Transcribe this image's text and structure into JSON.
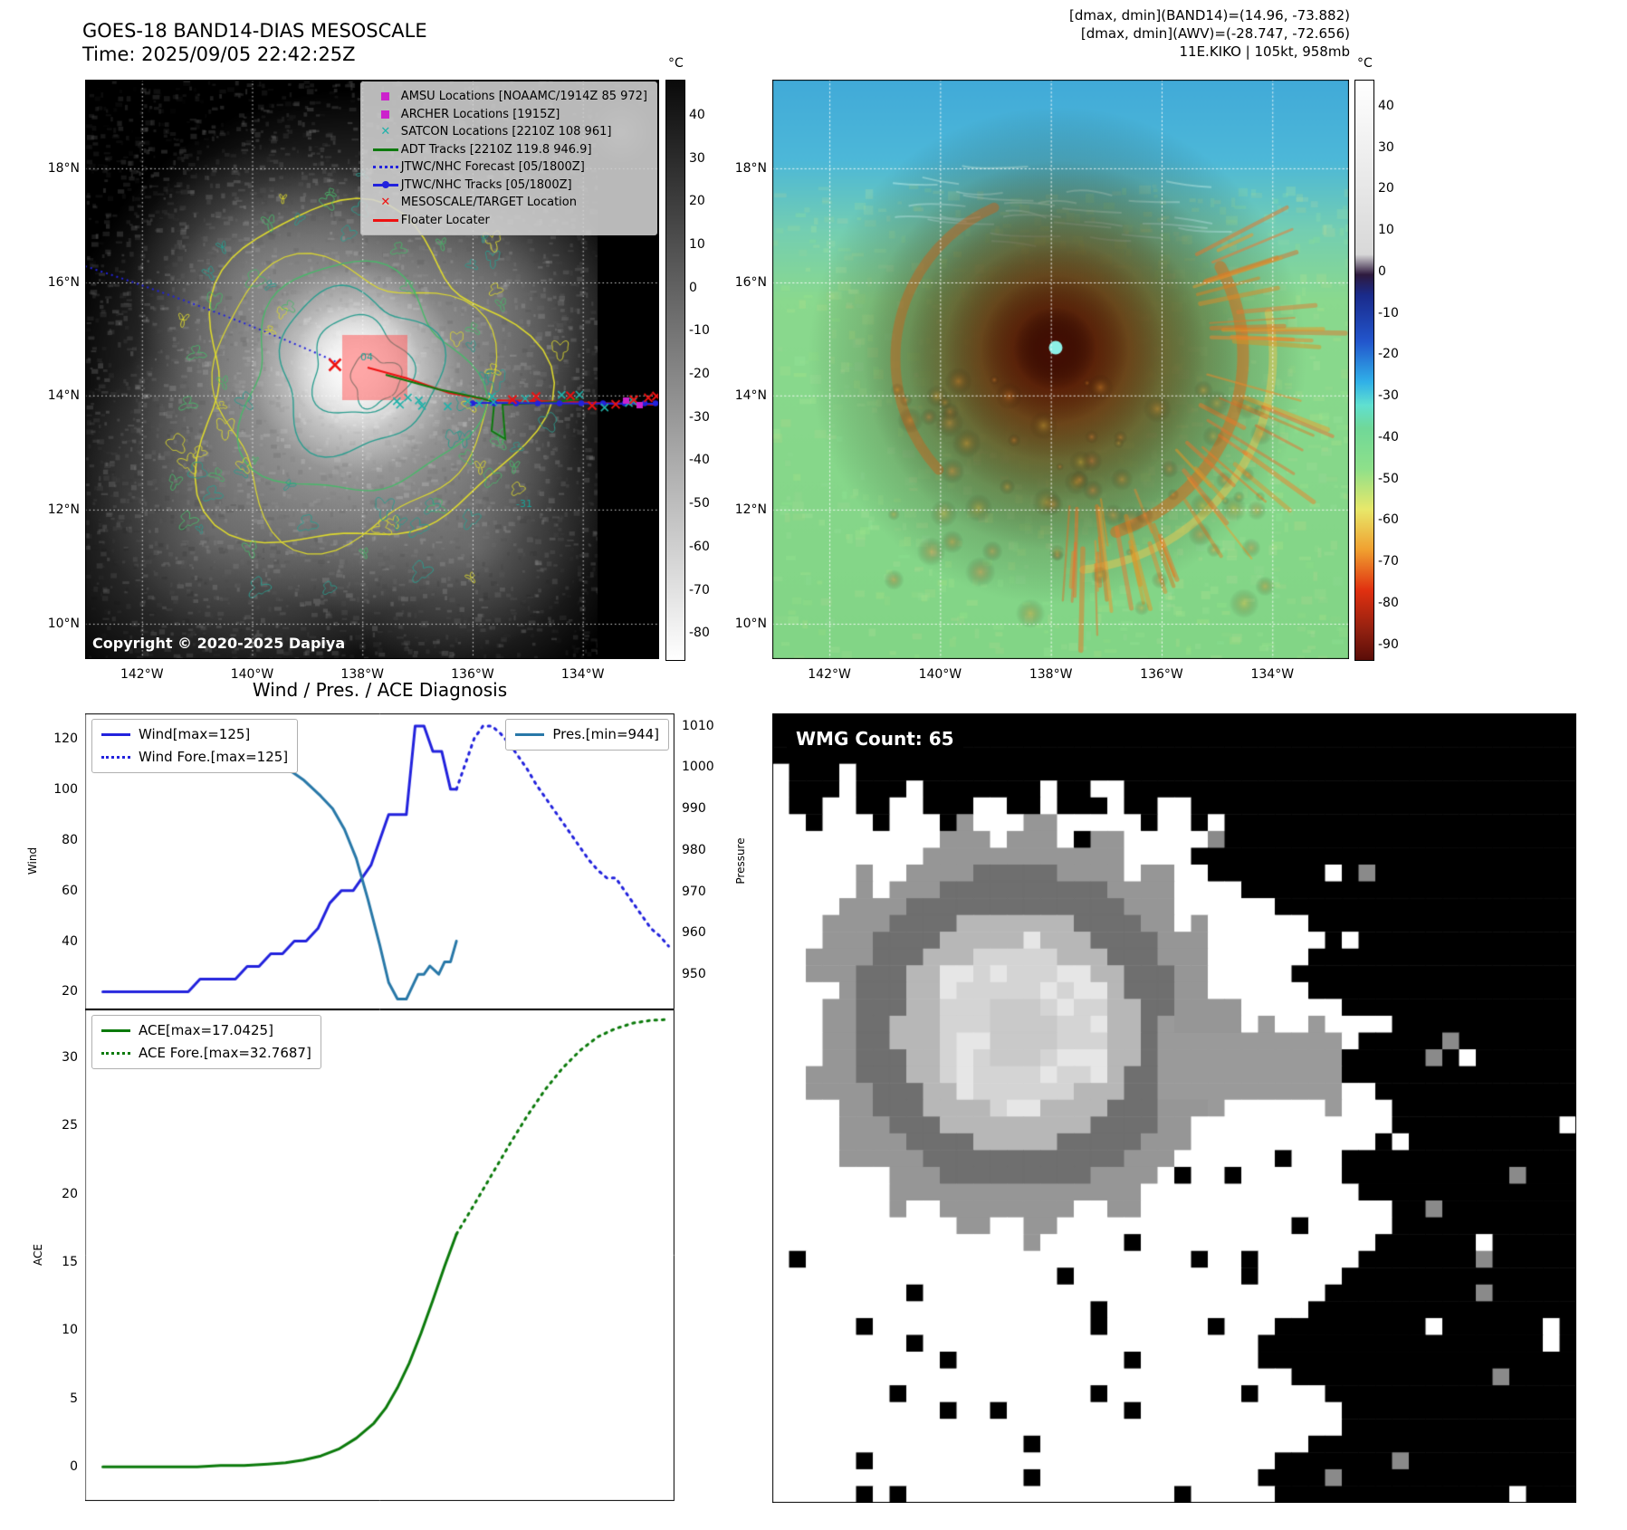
{
  "band14": {
    "title": "GOES-18 BAND14-DIAS MESOSCALE",
    "time_line": "Time: 2025/09/05 22:42:25Z",
    "copyright": "Copyright © 2020-2025 Dapiya",
    "colorbar_unit": "°C",
    "colorbar_ticks": [
      "40",
      "30",
      "20",
      "10",
      "0",
      "-10",
      "-20",
      "-30",
      "-40",
      "-50",
      "-60",
      "-70",
      "-80"
    ],
    "colorbar_stops": [
      [
        0,
        "#0a0a0a"
      ],
      [
        1,
        "#ffffff"
      ]
    ],
    "x_ticks": [
      "142°W",
      "140°W",
      "138°W",
      "136°W",
      "134°W"
    ],
    "y_ticks": [
      "18°N",
      "16°N",
      "14°N",
      "12°N",
      "10°N"
    ],
    "map_labels": [
      "04",
      "-31"
    ],
    "legend": [
      {
        "label": "AMSU Locations [NOAAMC/1914Z 85 972]",
        "marker": "square",
        "color": "#cc22cc"
      },
      {
        "label": "ARCHER Locations [1915Z]",
        "marker": "square",
        "color": "#cc22cc"
      },
      {
        "label": "SATCON Locations [2210Z 108 961]",
        "marker": "x",
        "color": "#20b2aa"
      },
      {
        "label": "ADT Tracks [2210Z 119.8 946.9]",
        "marker": "line",
        "color": "#0e7a0e"
      },
      {
        "label": "JTWC/NHC Forecast [05/1800Z]",
        "marker": "dotted",
        "color": "#2222dd"
      },
      {
        "label": "JTWC/NHC Tracks [05/1800Z]",
        "marker": "line-dot",
        "color": "#2222dd"
      },
      {
        "label": "MESOSCALE/TARGET Location",
        "marker": "x",
        "color": "#ee1111"
      },
      {
        "label": "Floater Locater",
        "marker": "line",
        "color": "#ee1111"
      }
    ]
  },
  "awv": {
    "header_lines": [
      "[dmax, dmin](BAND14)=(14.96, -73.882)",
      "[dmax, dmin](AWV)=(-28.747, -72.656)",
      "11E.KIKO | 105kt, 958mb"
    ],
    "colorbar_unit": "°C",
    "colorbar_ticks": [
      "40",
      "30",
      "20",
      "10",
      "0",
      "-10",
      "-20",
      "-30",
      "-40",
      "-50",
      "-60",
      "-70",
      "-80",
      "-90"
    ],
    "colorbar_stops": [
      [
        0,
        "#ffffff"
      ],
      [
        0.3,
        "#d8d8d8"
      ],
      [
        0.335,
        "#2e1a3e"
      ],
      [
        0.37,
        "#1a2a8a"
      ],
      [
        0.45,
        "#2255cc"
      ],
      [
        0.52,
        "#30b0e8"
      ],
      [
        0.56,
        "#60e0d0"
      ],
      [
        0.6,
        "#70d898"
      ],
      [
        0.67,
        "#8ee08a"
      ],
      [
        0.74,
        "#e8e86a"
      ],
      [
        0.81,
        "#f0a030"
      ],
      [
        0.88,
        "#e03010"
      ],
      [
        0.95,
        "#902010"
      ],
      [
        1,
        "#5a0d08"
      ]
    ],
    "x_ticks": [
      "142°W",
      "140°W",
      "138°W",
      "136°W",
      "134°W"
    ],
    "y_ticks": [
      "18°N",
      "16°N",
      "14°N",
      "12°N",
      "10°N"
    ]
  },
  "diagnosis": {
    "title": "Wind / Pres. / ACE Diagnosis"
  },
  "wmg": {
    "label": "WMG Count: 65"
  },
  "chart_data": [
    {
      "type": "line",
      "title": "Wind / Pres. / ACE Diagnosis (upper: wind & pressure)",
      "ylabel_left": "Wind",
      "ylabel_right": "Pressure",
      "ylim_left": [
        13,
        130
      ],
      "ylim_right": [
        941.5,
        1013
      ],
      "yticks_left": [
        20,
        40,
        60,
        80,
        100,
        120
      ],
      "yticks_right": [
        950,
        960,
        970,
        980,
        990,
        1000,
        1010
      ],
      "legend_position": "upper left / upper right",
      "series": [
        {
          "name": "Wind[max=125]",
          "axis": "left",
          "color": "#2222dd",
          "style": "solid",
          "x": [
            0.03,
            0.055,
            0.08,
            0.105,
            0.13,
            0.155,
            0.175,
            0.195,
            0.215,
            0.235,
            0.255,
            0.275,
            0.295,
            0.315,
            0.335,
            0.355,
            0.375,
            0.395,
            0.415,
            0.435,
            0.455,
            0.47,
            0.485,
            0.5,
            0.515,
            0.53,
            0.545,
            0.56,
            0.575,
            0.59,
            0.605,
            0.62,
            0.63
          ],
          "y": [
            20,
            20,
            20,
            20,
            20,
            20,
            20,
            25,
            25,
            25,
            25,
            30,
            30,
            35,
            35,
            40,
            40,
            45,
            55,
            60,
            60,
            65,
            70,
            80,
            90,
            90,
            90,
            125,
            125,
            115,
            115,
            100,
            100
          ]
        },
        {
          "name": "Wind Fore.[max=125]",
          "axis": "left",
          "color": "#2222dd",
          "style": "dotted",
          "x": [
            0.63,
            0.645,
            0.66,
            0.675,
            0.69,
            0.705,
            0.72,
            0.735,
            0.75,
            0.765,
            0.78,
            0.795,
            0.81,
            0.825,
            0.84,
            0.855,
            0.87,
            0.885,
            0.9,
            0.915,
            0.93,
            0.945,
            0.96,
            0.975,
            0.99
          ],
          "y": [
            100,
            110,
            120,
            125,
            125,
            122,
            118,
            113,
            108,
            102,
            97,
            92,
            87,
            82,
            77,
            72,
            68,
            65,
            65,
            60,
            55,
            50,
            45,
            42,
            38
          ]
        },
        {
          "name": "Pres.[min=944]",
          "axis": "right",
          "color": "#2878a8",
          "style": "solid",
          "x": [
            0.03,
            0.08,
            0.13,
            0.18,
            0.23,
            0.28,
            0.31,
            0.34,
            0.37,
            0.4,
            0.42,
            0.44,
            0.46,
            0.48,
            0.5,
            0.515,
            0.53,
            0.545,
            0.555,
            0.565,
            0.575,
            0.585,
            0.6,
            0.61,
            0.62,
            0.63
          ],
          "y": [
            1006,
            1006,
            1005,
            1005,
            1004,
            1003,
            1002,
            1000,
            997,
            993,
            990,
            985,
            978,
            968,
            957,
            948,
            944,
            944,
            947,
            950,
            950,
            952,
            950,
            953,
            953,
            958
          ]
        }
      ]
    },
    {
      "type": "line",
      "title": "Wind / Pres. / ACE Diagnosis (lower: ACE)",
      "ylabel_left": "ACE",
      "ylim_left": [
        -2.5,
        33.5
      ],
      "yticks_left": [
        0,
        5,
        10,
        15,
        20,
        25,
        30
      ],
      "legend_position": "upper left",
      "series": [
        {
          "name": "ACE[max=17.0425]",
          "axis": "left",
          "color": "#0b7a0b",
          "style": "solid",
          "x": [
            0.03,
            0.07,
            0.11,
            0.15,
            0.19,
            0.23,
            0.27,
            0.31,
            0.34,
            0.37,
            0.4,
            0.43,
            0.46,
            0.49,
            0.51,
            0.53,
            0.55,
            0.57,
            0.59,
            0.61,
            0.63
          ],
          "y": [
            0,
            0,
            0,
            0,
            0,
            0.1,
            0.1,
            0.2,
            0.3,
            0.5,
            0.8,
            1.3,
            2.1,
            3.2,
            4.3,
            5.8,
            7.6,
            9.8,
            12.2,
            14.7,
            17.04
          ]
        },
        {
          "name": "ACE Fore.[max=32.7687]",
          "axis": "left",
          "color": "#0b7a0b",
          "style": "dotted",
          "x": [
            0.63,
            0.66,
            0.69,
            0.72,
            0.75,
            0.78,
            0.81,
            0.84,
            0.87,
            0.9,
            0.93,
            0.96,
            0.99
          ],
          "y": [
            17.04,
            19.2,
            21.4,
            23.6,
            25.7,
            27.6,
            29.2,
            30.5,
            31.5,
            32.1,
            32.5,
            32.7,
            32.77
          ]
        }
      ]
    }
  ]
}
